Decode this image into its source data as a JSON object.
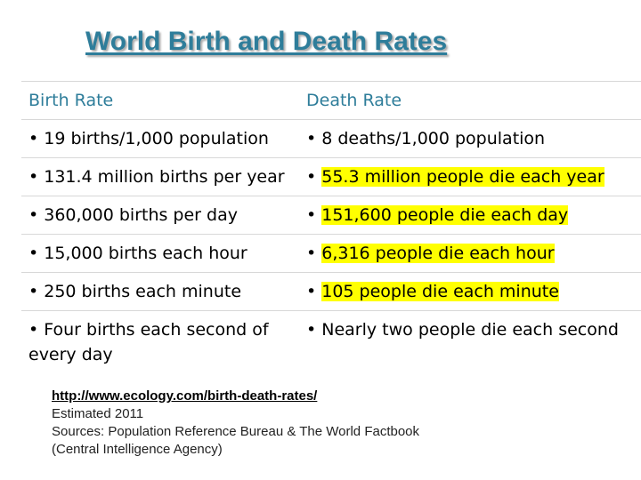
{
  "title": "World Birth and Death Rates",
  "table": {
    "headers": [
      "Birth Rate",
      "Death Rate"
    ],
    "rows": [
      {
        "birth": "• 19 births/1,000 population",
        "death": "• 8 deaths/1,000 population",
        "death_highlight": ""
      },
      {
        "birth": "• 131.4 million births per year",
        "death_bullet": "• ",
        "death_highlight": "55.3 million people die each year"
      },
      {
        "birth": "• 360,000 births per day",
        "death_bullet": "• ",
        "death_highlight": "151,600 people die each day"
      },
      {
        "birth": "• 15,000 births each hour",
        "death_bullet": "• ",
        "death_highlight": "6,316 people die each hour"
      },
      {
        "birth": "• 250 births each minute",
        "death_bullet": "• ",
        "death_highlight": "105 people die each minute"
      },
      {
        "birth": "• Four births each second of every day",
        "death": "• Nearly two people die each second",
        "death_highlight": ""
      }
    ]
  },
  "source": {
    "link": "http://www.ecology.com/birth-death-rates/",
    "line2": "Estimated 2011",
    "line3": "Sources: Population Reference Bureau & The World Factbook",
    "line4": "(Central Intelligence Agency)"
  },
  "colors": {
    "accent": "#2e7d9a",
    "highlight": "#ffff00"
  }
}
